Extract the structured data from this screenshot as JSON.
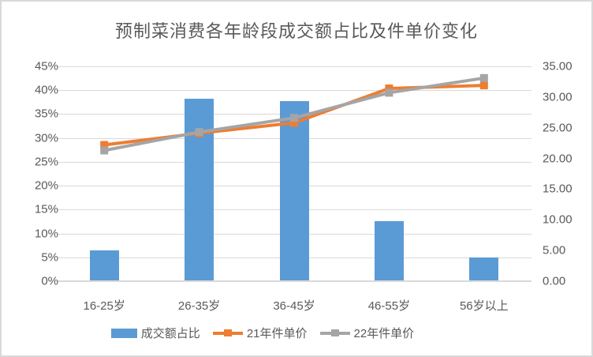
{
  "chart_data": {
    "type": "combo",
    "title": "预制菜消费各年龄段成交额占比及件单价变化",
    "categories": [
      "16-25岁",
      "26-35岁",
      "36-45岁",
      "46-55岁",
      "56岁以上"
    ],
    "series": [
      {
        "name": "成交额占比",
        "type": "bar",
        "axis": "left",
        "unit": "%",
        "color": "#5B9BD5",
        "values": [
          6.4,
          38.3,
          37.8,
          12.5,
          4.9
        ]
      },
      {
        "name": "21年件单价",
        "type": "line",
        "axis": "right",
        "marker": "square",
        "color": "#ED7D31",
        "values": [
          22.2,
          24.1,
          25.8,
          31.4,
          31.9
        ]
      },
      {
        "name": "22年件单价",
        "type": "line",
        "axis": "right",
        "marker": "square",
        "color": "#A5A5A5",
        "values": [
          21.3,
          24.3,
          26.6,
          30.7,
          33.1
        ]
      }
    ],
    "left_axis": {
      "min": 0,
      "max": 45,
      "step": 5,
      "tick_labels": [
        "0%",
        "5%",
        "10%",
        "15%",
        "20%",
        "25%",
        "30%",
        "35%",
        "40%",
        "45%"
      ]
    },
    "right_axis": {
      "min": 0,
      "max": 35,
      "step": 5,
      "tick_labels": [
        "0.00",
        "5.00",
        "10.00",
        "15.00",
        "20.00",
        "25.00",
        "30.00",
        "35.00"
      ]
    },
    "gridlines": "horizontal",
    "legend_position": "bottom"
  },
  "colors": {
    "background": "#FFFFFF",
    "frame_border": "#D9D9D9",
    "grid": "#D9D9D9",
    "text": "#595959"
  }
}
